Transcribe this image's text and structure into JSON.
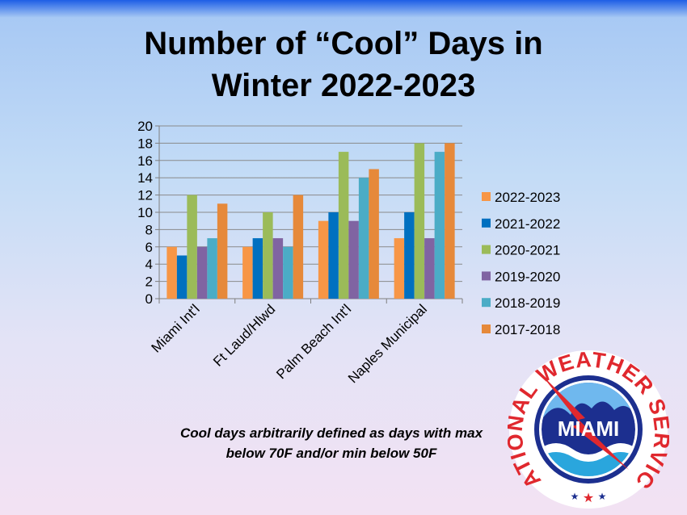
{
  "title_line1": "Number of “Cool” Days in",
  "title_line2": "Winter 2022-2023",
  "note_line1": "Cool days arbitrarily defined as days with max",
  "note_line2": "below 70F and/or min below 50F",
  "logo": {
    "ring_text_left": "NATIONAL",
    "ring_text_top": "WEATHER",
    "ring_text_right": "SERVICE",
    "center_text": "MIAMI",
    "ring_color": "#e0282e",
    "center_color": "#1c2f8f"
  },
  "chart_data": {
    "type": "bar",
    "categories": [
      "Miami Int'l",
      "Ft Laud/Hlwd",
      "Palm Beach Int'l",
      "Naples Municipal"
    ],
    "series": [
      {
        "name": "2022-2023",
        "color": "#f79646",
        "values": [
          6,
          6,
          9,
          7
        ]
      },
      {
        "name": "2021-2022",
        "color": "#0070c0",
        "values": [
          5,
          7,
          10,
          10
        ]
      },
      {
        "name": "2020-2021",
        "color": "#9bbb59",
        "values": [
          12,
          10,
          17,
          18
        ]
      },
      {
        "name": "2019-2020",
        "color": "#8064a2",
        "values": [
          6,
          7,
          9,
          7
        ]
      },
      {
        "name": "2018-2019",
        "color": "#4bacc6",
        "values": [
          7,
          6,
          14,
          17
        ]
      },
      {
        "name": "2017-2018",
        "color": "#e6893a",
        "values": [
          11,
          12,
          15,
          18
        ]
      }
    ],
    "ylim": [
      0,
      20
    ],
    "yticks": [
      0,
      2,
      4,
      6,
      8,
      10,
      12,
      14,
      16,
      18,
      20
    ],
    "grid": true,
    "legend_position": "right"
  }
}
